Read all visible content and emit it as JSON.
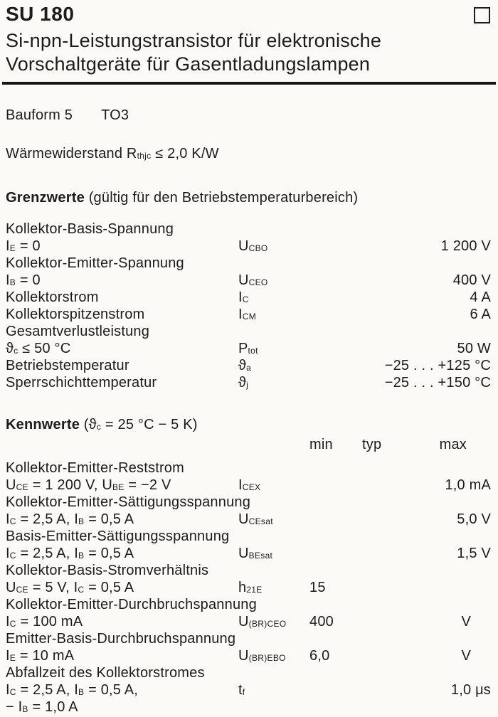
{
  "colors": {
    "text": "#1c1c1c",
    "background": "#fbfaf7",
    "rule": "#161616"
  },
  "header": {
    "title": "SU 180",
    "subtitle_line1": "Si-npn-Leistungstransistor für elektronische",
    "subtitle_line2": "Vorschaltgeräte für Gasentladungslampen",
    "corner_icon": "outlined-square-icon"
  },
  "info": {
    "bauform_label": "Bauform 5",
    "bauform_value": "TO3",
    "thermal_resistance": "Wärmewiderstand R~thjc~ ≤ 2,0 K/W"
  },
  "grenzwerte": {
    "heading_bold": "Grenzwerte",
    "heading_rest": " (gültig für den Betriebstemperaturbereich)",
    "rows": [
      {
        "label": "Kollektor-Basis-Spannung"
      },
      {
        "label": "I~E~ = 0",
        "symbol": "U~CBO~",
        "value": "1 200 V"
      },
      {
        "label": "Kollektor-Emitter-Spannung"
      },
      {
        "label": "I~B~ = 0",
        "symbol": "U~CEO~",
        "value": "400 V"
      },
      {
        "label": "Kollektorstrom",
        "symbol": "I~C~",
        "value": "4 A"
      },
      {
        "label": "Kollektorspitzenstrom",
        "symbol": "I~CM~",
        "value": "6 A"
      },
      {
        "label": "Gesamtverlustleistung"
      },
      {
        "label": "ϑ~c~ ≤ 50 °C",
        "symbol": "P~tot~",
        "value": "50 W"
      },
      {
        "label": "Betriebstemperatur",
        "symbol": "ϑ~a~",
        "value": "−25 . . . +125 °C"
      },
      {
        "label": "Sperrschichttemperatur",
        "symbol": "ϑ~j~",
        "value": "−25 . . . +150 °C"
      }
    ]
  },
  "kennwerte": {
    "heading_bold": "Kennwerte",
    "heading_rest": " (ϑ~c~ = 25 °C − 5 K)",
    "columns": {
      "min": "min",
      "typ": "typ",
      "max": "max"
    },
    "rows": [
      {
        "label": "Kollektor-Emitter-Reststrom"
      },
      {
        "label": "U~CE~ = 1 200 V, U~BE~ = −2 V",
        "symbol": "I~CEX~",
        "max": "1,0 mA"
      },
      {
        "label": "Kollektor-Emitter-Sättigungsspannung"
      },
      {
        "label": "I~C~ = 2,5 A, I~B~ = 0,5 A",
        "symbol": "U~CEsat~",
        "max": "5,0 V"
      },
      {
        "label": "Basis-Emitter-Sättigungsspannung"
      },
      {
        "label": "I~C~ = 2,5 A, I~B~ = 0,5 A",
        "symbol": "U~BEsat~",
        "max": "1,5 V"
      },
      {
        "label": "Kollektor-Basis-Stromverhältnis"
      },
      {
        "label": "U~CE~ = 5 V, I~C~ = 0,5 A",
        "symbol": "h~21E~",
        "min": "15"
      },
      {
        "label": "Kollektor-Emitter-Durchbruchspannung"
      },
      {
        "label": "I~C~ = 100 mA",
        "symbol": "U~(BR)CEO~",
        "min": "400",
        "max": "V"
      },
      {
        "label": "Emitter-Basis-Durchbruchspannung"
      },
      {
        "label": "I~E~ = 10 mA",
        "symbol": "U~(BR)EBO~",
        "min": "6,0",
        "max": "V"
      },
      {
        "label": "Abfallzeit des Kollektorstromes"
      },
      {
        "label": "I~C~ = 2,5 A, I~B~ = 0,5 A,",
        "symbol": "t~f~",
        "max": "1,0 μs"
      },
      {
        "label": "− I~B~ = 1,0 A"
      }
    ]
  }
}
